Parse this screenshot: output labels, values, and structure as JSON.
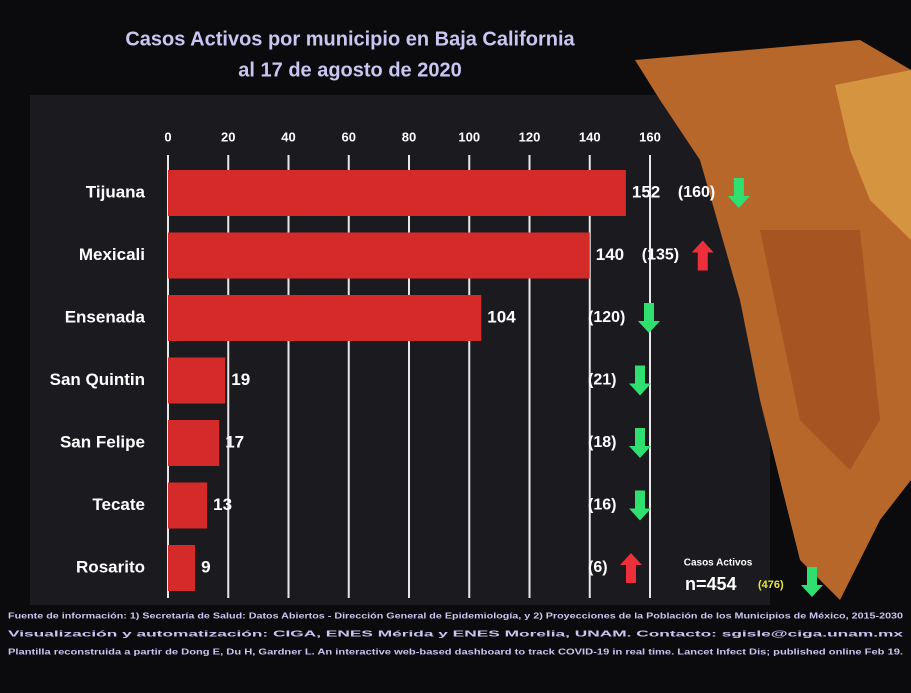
{
  "chart_data": {
    "type": "bar",
    "title": "Casos Activos por municipio en Baja California",
    "subtitle": "al 17 de agosto de 2020",
    "categories": [
      "Tijuana",
      "Mexicali",
      "Ensenada",
      "San Quintin",
      "San Felipe",
      "Tecate",
      "Rosarito"
    ],
    "values": [
      152,
      140,
      104,
      19,
      17,
      13,
      9
    ],
    "color": "#d52a2a",
    "previous": {
      "values": [
        160,
        135,
        120,
        21,
        18,
        16,
        6
      ],
      "value_labels": [
        "(160)",
        "(135)",
        "(120)",
        "(21)",
        "(18)",
        "(16)",
        "(6)"
      ]
    },
    "up_color": "#ec2f3a",
    "down_color": "#2fe070",
    "xlim": [
      0,
      160
    ],
    "xticks": [
      0,
      20,
      40,
      60,
      80,
      100,
      120,
      140,
      160
    ],
    "grid": true,
    "total": {
      "label": "Casos Activos",
      "value": 454,
      "value_label": "n=454",
      "previous": 476,
      "previous_label": "(476)"
    },
    "footer": [
      "Fuente de información: 1) Secretaría de Salud: Datos Abiertos - Dirección General de Epidemiología, y 2) Proyecciones de la Población de los Municipios de México, 2015-2030",
      "Visualización y automatización: CIGA, ENES Mérida y ENES Morelia, UNAM. Contacto: sgisle@ciga.unam.mx",
      "Plantilla reconstruida a partir de Dong E, Du H, Gardner L. An interactive web-based dashboard to track COVID-19 in real time. Lancet Infect Dis; published online Feb 19."
    ]
  }
}
